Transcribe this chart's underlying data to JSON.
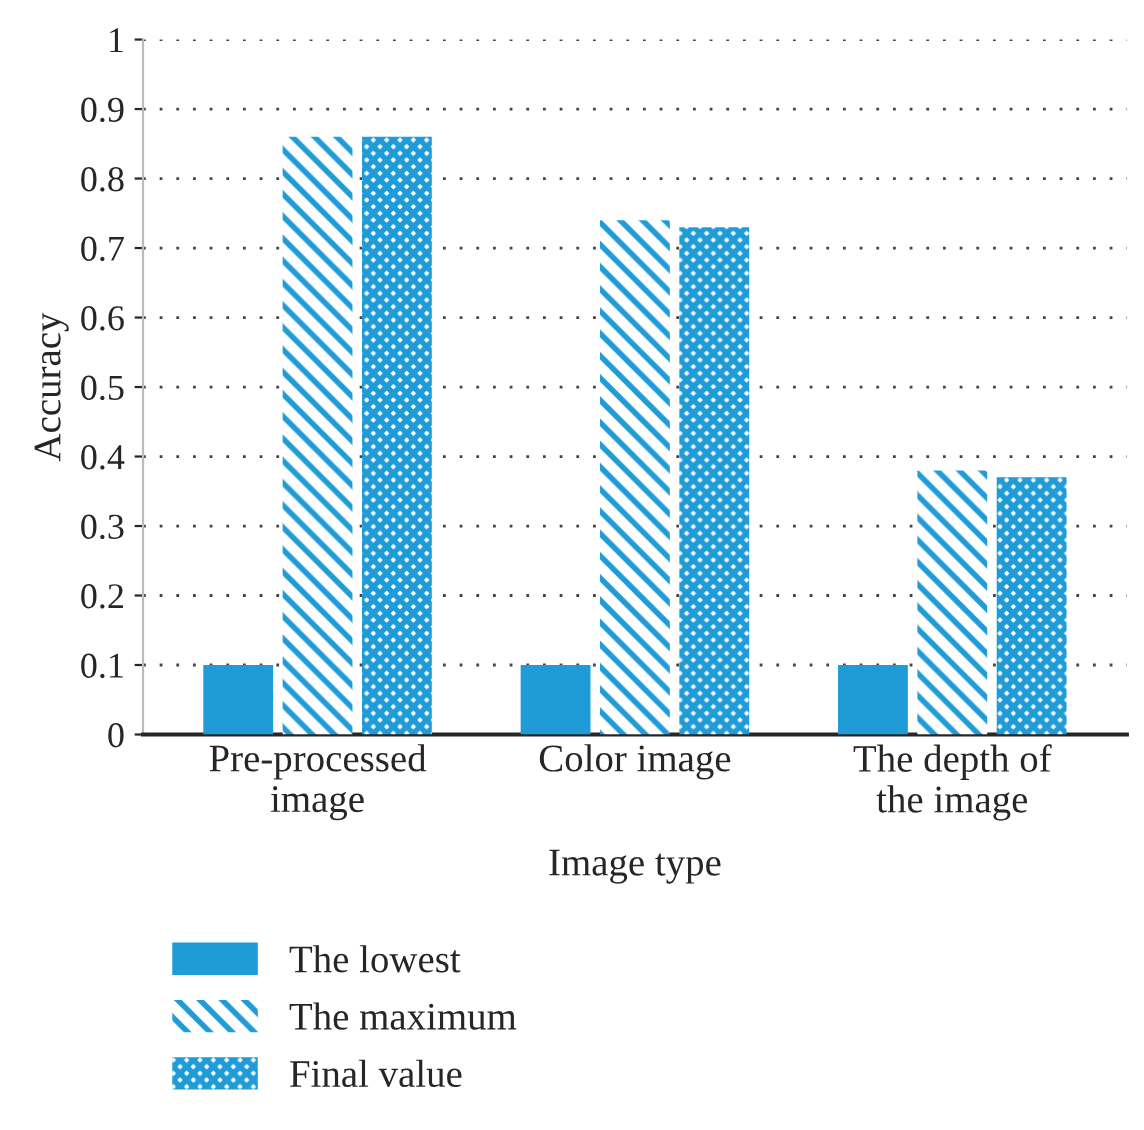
{
  "chart_data": {
    "type": "bar",
    "xlabel": "Image type",
    "ylabel": "Accuracy",
    "categories": [
      "Pre-processed\nimage",
      "Color image",
      "The depth of\nthe image"
    ],
    "series": [
      {
        "name": "The lowest",
        "color": "#1f9cd8",
        "values": [
          0.1,
          0.1,
          0.1
        ]
      },
      {
        "name": "The maximum",
        "color": "#1f9cd8",
        "values": [
          0.86,
          0.74,
          0.38
        ]
      },
      {
        "name": "Final value",
        "color": "#1f9cd8",
        "values": [
          0.86,
          0.73,
          0.37
        ]
      }
    ],
    "ylim": [
      0,
      1
    ],
    "yticks": [
      0,
      0.1,
      0.2,
      0.3,
      0.4,
      0.5,
      0.6,
      0.7,
      0.8,
      0.9,
      1
    ],
    "grid": "y",
    "legend": "bottom left"
  }
}
